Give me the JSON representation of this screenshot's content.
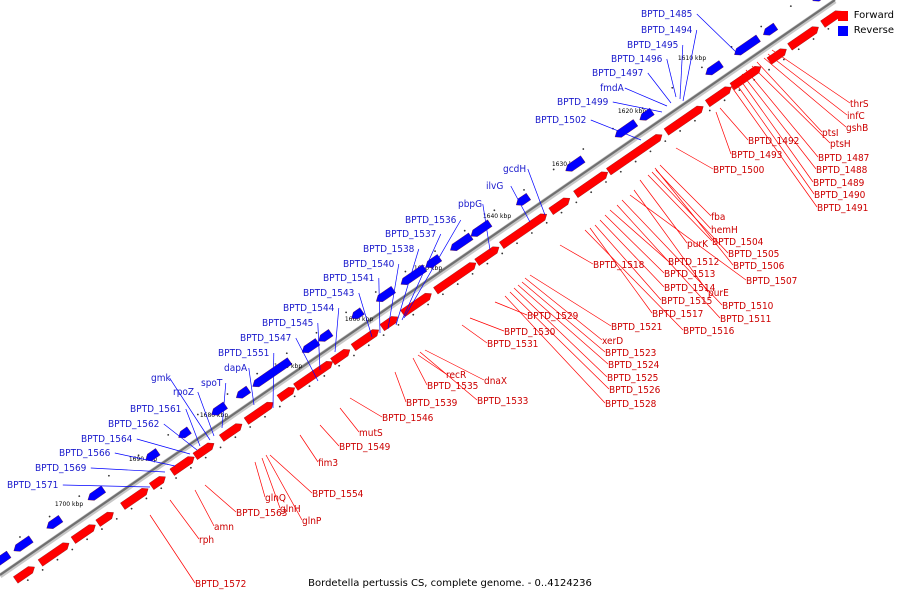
{
  "caption": "Bordetella pertussis CS, complete genome. - 0..4124236",
  "colors": {
    "forward": "#ff0000",
    "reverse": "#0000ff",
    "backbone": "#707070",
    "forward_label": "#cc0000",
    "reverse_label": "#1a1acc"
  },
  "legend": [
    {
      "label": "Forward",
      "color": "#ff0000"
    },
    {
      "label": "Reverse",
      "color": "#0000ff"
    }
  ],
  "scale_ticks": [
    "1610 kbp",
    "1620 kbp",
    "1630 kbp",
    "1640 kbp",
    "1650 kbp",
    "1660 kbp",
    "1670 kbp",
    "1680 kbp",
    "1690 kbp",
    "1700 kbp"
  ],
  "reverse_genes": [
    "BPTD_1485",
    "BPTD_1494",
    "BPTD_1495",
    "BPTD_1496",
    "BPTD_1497",
    "fmdA",
    "BPTD_1499",
    "BPTD_1502",
    "gcdH",
    "ilvG",
    "pbpG",
    "BPTD_1536",
    "BPTD_1537",
    "BPTD_1538",
    "BPTD_1540",
    "BPTD_1541",
    "BPTD_1543",
    "BPTD_1544",
    "BPTD_1545",
    "BPTD_1547",
    "BPTD_1551",
    "dapA",
    "gmk",
    "rpoZ",
    "spoT",
    "BPTD_1561",
    "BPTD_1562",
    "BPTD_1564",
    "BPTD_1566",
    "BPTD_1569",
    "BPTD_1571"
  ],
  "forward_genes": [
    "thrS",
    "infC",
    "gshB",
    "ptsI",
    "ptsH",
    "BPTD_1487",
    "BPTD_1488",
    "BPTD_1489",
    "BPTD_1490",
    "BPTD_1491",
    "BPTD_1492",
    "BPTD_1493",
    "BPTD_1500",
    "fba",
    "hemH",
    "purK",
    "BPTD_1504",
    "BPTD_1505",
    "BPTD_1506",
    "BPTD_1507",
    "purE",
    "BPTD_1510",
    "BPTD_1511",
    "BPTD_1512",
    "BPTD_1513",
    "BPTD_1514",
    "BPTD_1515",
    "BPTD_1516",
    "BPTD_1517",
    "BPTD_1518",
    "BPTD_1521",
    "xerD",
    "BPTD_1523",
    "BPTD_1524",
    "BPTD_1525",
    "BPTD_1526",
    "BPTD_1528",
    "BPTD_1529",
    "BPTD_1530",
    "BPTD_1531",
    "dnaX",
    "recR",
    "BPTD_1535",
    "BPTD_1533",
    "BPTD_1539",
    "BPTD_1546",
    "mutS",
    "BPTD_1549",
    "fim3",
    "BPTD_1554",
    "glnQ",
    "glnH",
    "glnP",
    "BPTD_1563",
    "amn",
    "rph",
    "BPTD_1572"
  ]
}
